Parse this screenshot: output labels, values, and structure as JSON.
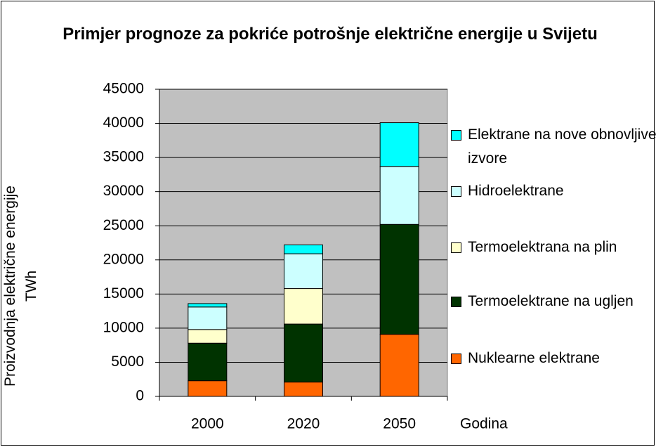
{
  "chart_data": {
    "type": "stacked_bar",
    "title": "Primjer prognoze za pokriće potrošnje električne energije u Svijetu",
    "y_label": "Proizvodnja električne energije TWh",
    "x_label": "Godina",
    "categories": [
      "2000",
      "2020",
      "2050"
    ],
    "series": [
      {
        "name": "Nuklearne elektrane",
        "color": "#ff6600",
        "values": [
          2300,
          2100,
          9100
        ]
      },
      {
        "name": "Termoelektrane na ugljen",
        "color": "#003300",
        "values": [
          5500,
          8500,
          16100
        ]
      },
      {
        "name": "Termoelektrana na plin",
        "color": "#ffffcc",
        "values": [
          2000,
          5200,
          0
        ]
      },
      {
        "name": "Hidroelektrane",
        "color": "#ccffff",
        "values": [
          3300,
          5100,
          8500
        ]
      },
      {
        "name": "Elektrane na nove obnovljive izvore",
        "color": "#00ffff",
        "values": [
          500,
          1300,
          6400
        ]
      }
    ],
    "ylim": [
      0,
      45000
    ],
    "yticks": [
      0,
      5000,
      10000,
      15000,
      20000,
      25000,
      30000,
      35000,
      40000,
      45000
    ],
    "grid": true,
    "legend": "right"
  }
}
